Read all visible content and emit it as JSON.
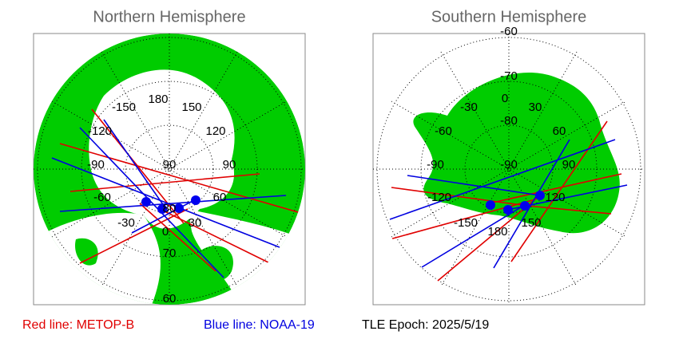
{
  "panels": [
    {
      "title": "Northern Hemisphere",
      "lon_labels": [
        "180",
        "-150",
        "150",
        "-120",
        "120",
        "-90",
        "90",
        "-60",
        "60",
        "-30",
        "30",
        "0"
      ],
      "lat_labels": [
        "90",
        "80",
        "70",
        "60"
      ]
    },
    {
      "title": "Southern Hemisphere",
      "lon_labels": [
        "0",
        "-30",
        "30",
        "-60",
        "60",
        "-90",
        "90",
        "-120",
        "120",
        "-150",
        "150",
        "180"
      ],
      "lat_labels": [
        "-60",
        "-70",
        "-80",
        "-90"
      ]
    }
  ],
  "legend": {
    "red": "Red line: METOP-B",
    "blue": "Blue line: NOAA-19",
    "epoch": "TLE Epoch: 2025/5/19"
  }
}
